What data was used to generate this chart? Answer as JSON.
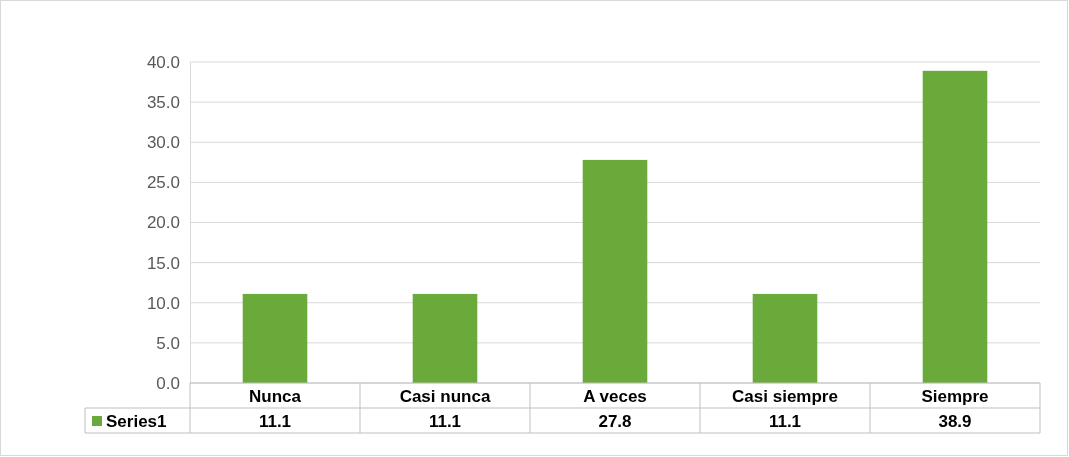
{
  "chart_data": {
    "type": "bar",
    "categories": [
      "Nunca",
      "Casi nunca",
      "A veces",
      "Casi siempre",
      "Siempre"
    ],
    "series": [
      {
        "name": "Series1",
        "color": "#6aaa3a",
        "values": [
          11.1,
          11.1,
          27.8,
          11.1,
          38.9
        ]
      }
    ],
    "ylim": [
      0,
      40
    ],
    "yticks": [
      {
        "value": 0,
        "label": "0.0"
      },
      {
        "value": 5,
        "label": "5.0"
      },
      {
        "value": 10,
        "label": "10.0"
      },
      {
        "value": 15,
        "label": "15.0"
      },
      {
        "value": 20,
        "label": "20.0"
      },
      {
        "value": 25,
        "label": "25.0"
      },
      {
        "value": 30,
        "label": "30.0"
      },
      {
        "value": 35,
        "label": "35.0"
      },
      {
        "value": 40,
        "label": "40.0"
      }
    ],
    "grid": "y",
    "data_labels": true,
    "legend": "bottom"
  }
}
